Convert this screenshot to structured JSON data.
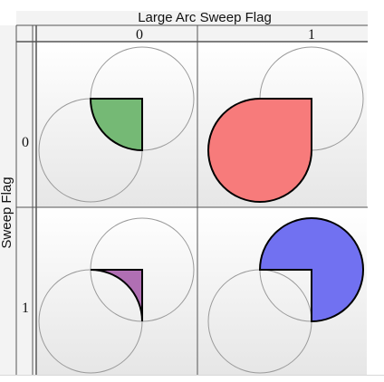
{
  "header": {
    "title": "Large Arc Sweep Flag",
    "col_values": [
      "0",
      "1"
    ]
  },
  "side": {
    "title": "Sweep Flag",
    "row_values": [
      "0",
      "1"
    ]
  },
  "colors": {
    "green_fill": "#75b975",
    "red_fill": "#f77b7b",
    "purple_fill": "#b06fb3",
    "blue_fill": "#7171f1",
    "circle_stroke": "#9a9a9a",
    "grid_line": "#555555"
  }
}
